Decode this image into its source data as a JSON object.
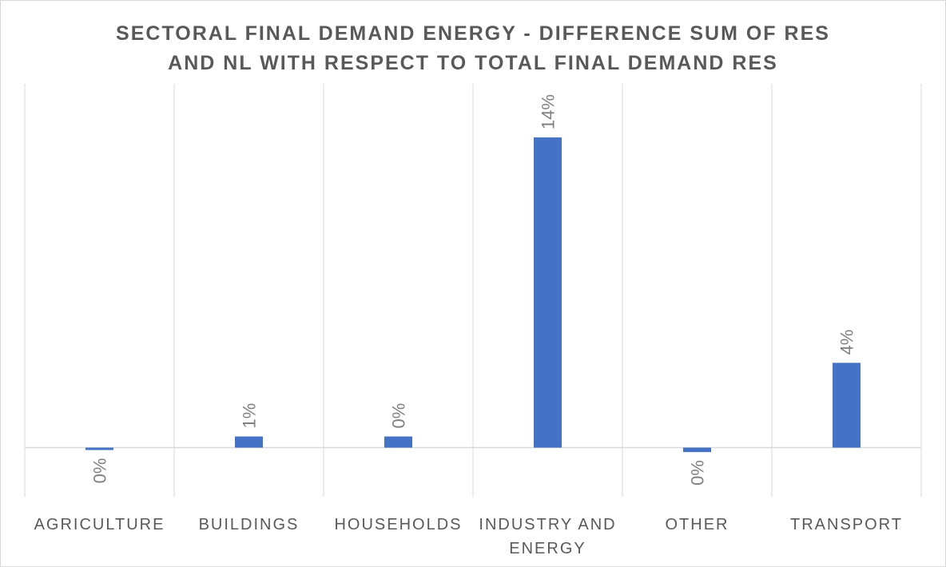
{
  "chart_data": {
    "type": "bar",
    "title_lines": [
      "SECTORAL FINAL DEMAND ENERGY - DIFFERENCE SUM OF RES",
      "AND NL WITH RESPECT TO TOTAL FINAL DEMAND RES"
    ],
    "categories": [
      [
        "AGRICULTURE"
      ],
      [
        "BUILDINGS"
      ],
      [
        "HOUSEHOLDS"
      ],
      [
        "INDUSTRY AND",
        "ENERGY"
      ],
      [
        "OTHER"
      ],
      [
        "TRANSPORT"
      ]
    ],
    "values": [
      -0.001,
      0.005,
      0.005,
      0.139,
      -0.002,
      0.038
    ],
    "data_labels": [
      "0%",
      "1%",
      "0%",
      "14%",
      "0%",
      "4%"
    ],
    "ylim": [
      -0.022,
      0.163
    ],
    "bar_color": "#4472c4",
    "label_color": "#808080",
    "grid": "vertical category separators",
    "legend": "none"
  }
}
